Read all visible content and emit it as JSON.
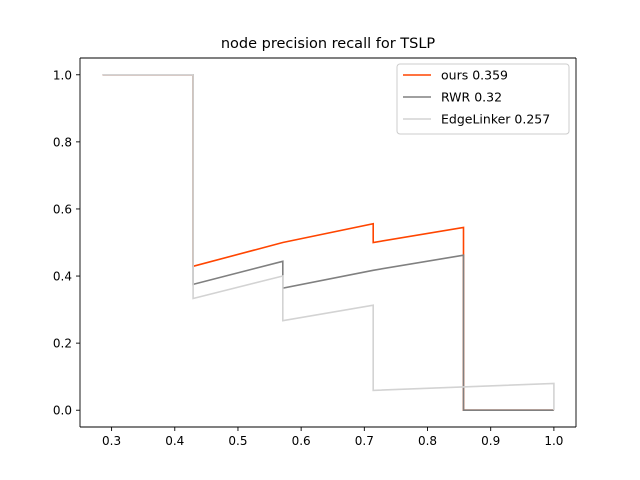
{
  "chart_data": {
    "type": "line",
    "title": "node precision recall for TSLP",
    "xlabel": "",
    "ylabel": "",
    "xlim": [
      0.25,
      1.035
    ],
    "ylim": [
      -0.05,
      1.05
    ],
    "x_ticks": [
      "0.3",
      "0.4",
      "0.5",
      "0.6",
      "0.7",
      "0.8",
      "0.9",
      "1.0"
    ],
    "y_ticks": [
      "0.0",
      "0.2",
      "0.4",
      "0.6",
      "0.8",
      "1.0"
    ],
    "grid": false,
    "legend_position": "upper-right",
    "series": [
      {
        "name": "ours 0.359",
        "color": "#ff4500",
        "points": [
          [
            0.286,
            1.0
          ],
          [
            0.429,
            1.0
          ],
          [
            0.429,
            0.429
          ],
          [
            0.571,
            0.5
          ],
          [
            0.714,
            0.556
          ],
          [
            0.714,
            0.5
          ],
          [
            0.857,
            0.545
          ],
          [
            0.857,
            0.0
          ],
          [
            1.0,
            0.0
          ]
        ]
      },
      {
        "name": "RWR 0.32",
        "color": "#808080",
        "points": [
          [
            0.286,
            1.0
          ],
          [
            0.429,
            1.0
          ],
          [
            0.429,
            0.375
          ],
          [
            0.571,
            0.444
          ],
          [
            0.571,
            0.364
          ],
          [
            0.714,
            0.417
          ],
          [
            0.857,
            0.462
          ],
          [
            0.857,
            0.0
          ],
          [
            1.0,
            0.0
          ]
        ]
      },
      {
        "name": "EdgeLinker 0.257",
        "color": "#d3d3d3",
        "points": [
          [
            0.286,
            1.0
          ],
          [
            0.429,
            1.0
          ],
          [
            0.429,
            0.333
          ],
          [
            0.571,
            0.4
          ],
          [
            0.571,
            0.267
          ],
          [
            0.714,
            0.313
          ],
          [
            0.714,
            0.059
          ],
          [
            1.0,
            0.08
          ],
          [
            1.0,
            0.0
          ]
        ]
      }
    ]
  }
}
